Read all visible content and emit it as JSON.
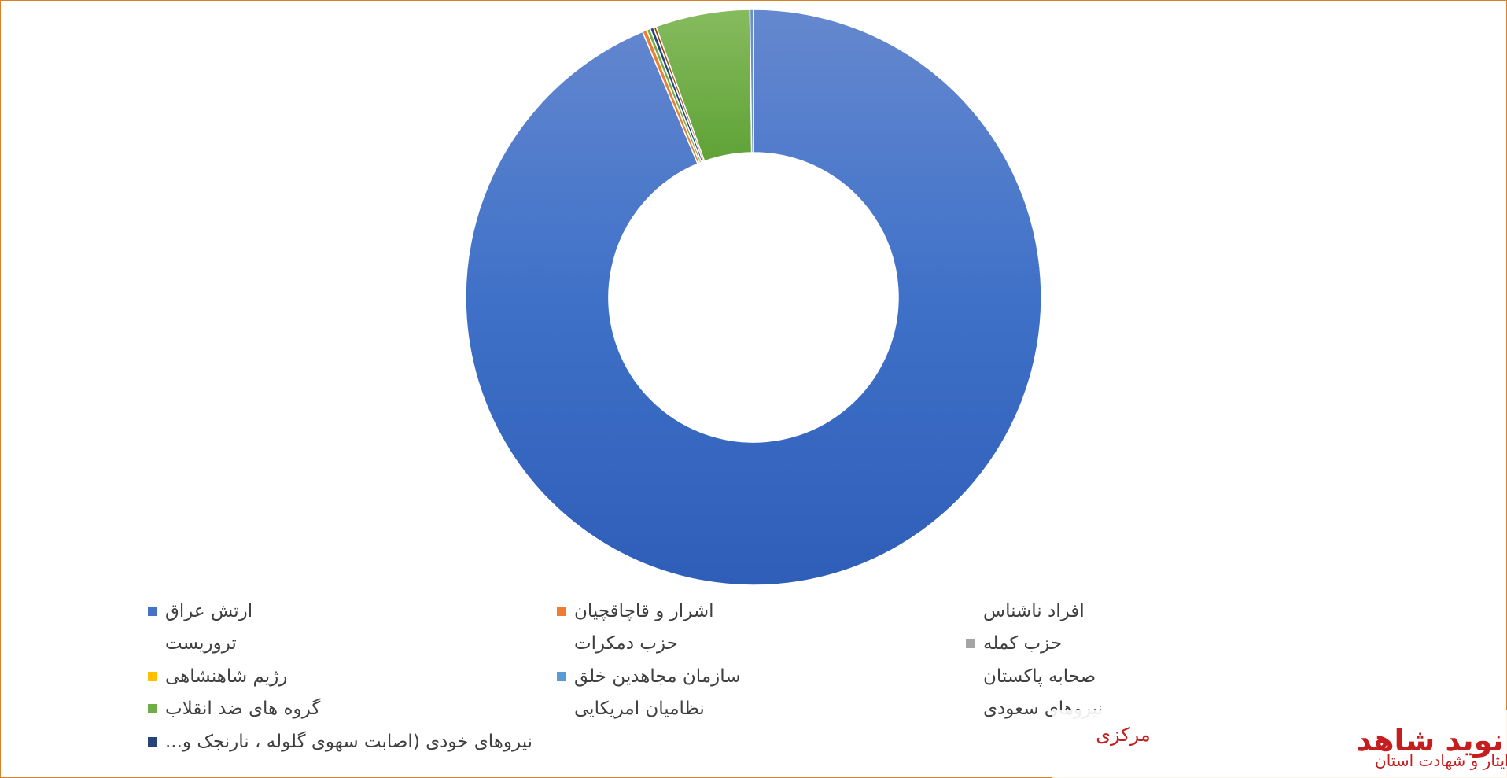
{
  "chart_data": {
    "type": "pie",
    "variant": "donut",
    "title": "",
    "categories": [
      "ارتش عراق",
      "اشرار و قاچاقچیان",
      "افراد ناشناس",
      "تروریست",
      "حزب دمکرات",
      "حزب کمله",
      "رژیم شاهنشاهی",
      "سازمان مجاهدین خلق",
      "صحابه پاکستان",
      "گروه های ضد انقلاب",
      "نظامیان امریکایی",
      "نیروهای سعودی",
      "نیروهای خودی (اصابت سهوی گلوله ، نارنجک و..."
    ],
    "values": [
      93.7,
      0.25,
      0.0,
      0.0,
      0.0,
      0.2,
      0.2,
      0.15,
      0.0,
      5.3,
      0.0,
      0.0,
      0.2
    ],
    "colors": [
      "#4472c4",
      "#ed7d31",
      "#a5a5a5",
      "#ffc000",
      "#5b9bd5",
      "#70ad47",
      "#264478",
      "#9e480e",
      "#636363",
      "#997300",
      "#255e91",
      "#43682b",
      "#698ed0"
    ],
    "legend": {
      "position": "bottom",
      "items": [
        {
          "label": "ارتش عراق",
          "color": "#4472c4",
          "show_swatch": true
        },
        {
          "label": "اشرار و قاچاقچیان",
          "color": "#ed7d31",
          "show_swatch": true
        },
        {
          "label": "افراد ناشناس",
          "color": "",
          "show_swatch": false
        },
        {
          "label": "تروریست",
          "color": "",
          "show_swatch": false
        },
        {
          "label": "حزب دمکرات",
          "color": "",
          "show_swatch": false
        },
        {
          "label": "حزب کمله",
          "color": "#a5a5a5",
          "show_swatch": true
        },
        {
          "label": "رژیم شاهنشاهی",
          "color": "#ffc000",
          "show_swatch": true
        },
        {
          "label": "سازمان مجاهدین خلق",
          "color": "#5b9bd5",
          "show_swatch": true
        },
        {
          "label": "صحابه پاکستان",
          "color": "",
          "show_swatch": false
        },
        {
          "label": "گروه های ضد انقلاب",
          "color": "#70ad47",
          "show_swatch": true
        },
        {
          "label": "نظامیان امریکایی",
          "color": "",
          "show_swatch": false
        },
        {
          "label": "نیروهای سعودی",
          "color": "",
          "show_swatch": false
        },
        {
          "label": "نیروهای خودی (اصابت سهوی گلوله ، نارنجک و...",
          "color": "#264478",
          "show_swatch": true
        }
      ]
    }
  },
  "watermark": {
    "brand": "نوید شاهد",
    "line1": "پایگاه اطلاع رسانی فرهنگ ایثار و شهادت استان",
    "line2": "مرکزی"
  }
}
